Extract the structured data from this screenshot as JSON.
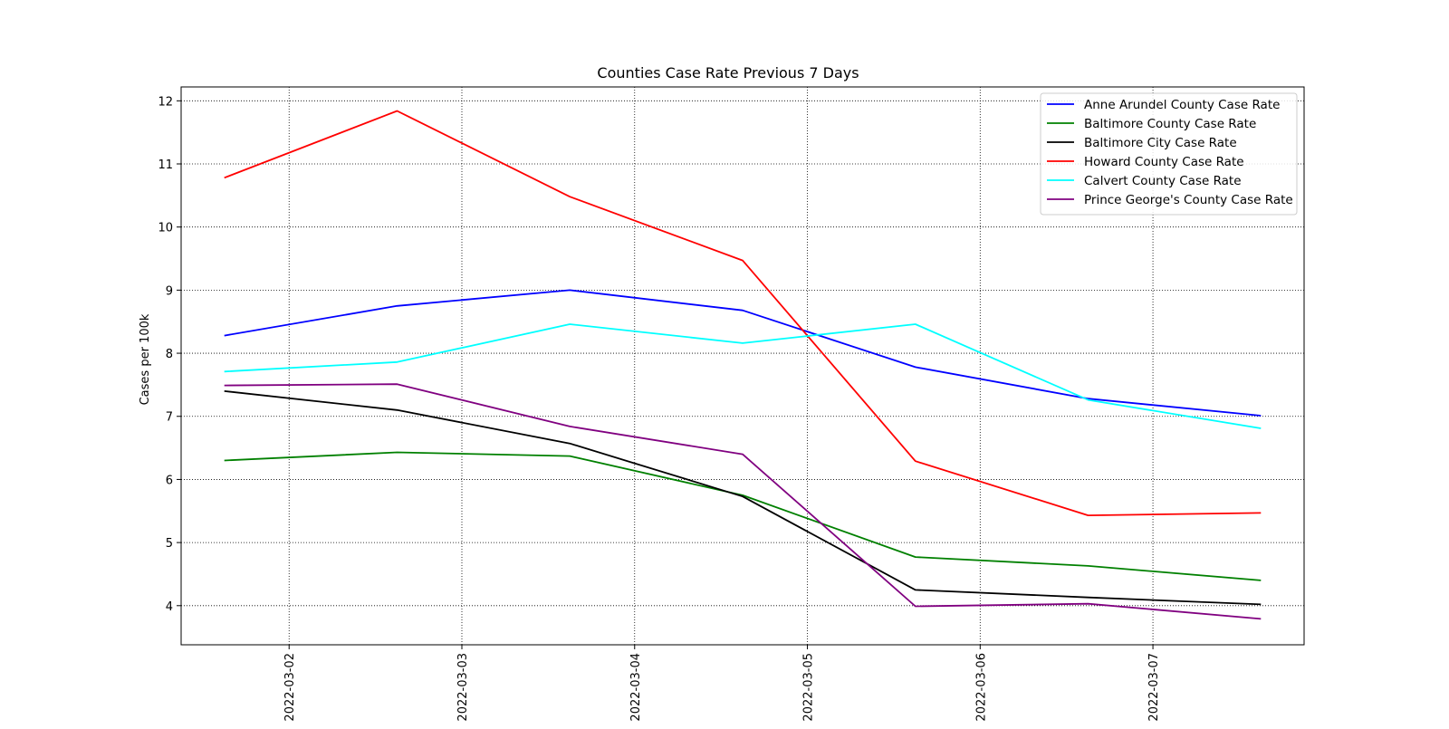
{
  "chart_data": {
    "type": "line",
    "title": "Counties Case Rate Previous 7 Days",
    "xlabel": "",
    "ylabel": "Cases per 100k",
    "x": [
      "2022-03-01 15:00",
      "2022-03-02 15:00",
      "2022-03-03 15:00",
      "2022-03-04 15:00",
      "2022-03-05 15:00",
      "2022-03-06 15:00",
      "2022-03-07 15:00"
    ],
    "x_ticks": [
      "2022-03-02",
      "2022-03-03",
      "2022-03-04",
      "2022-03-05",
      "2022-03-06",
      "2022-03-07"
    ],
    "xlim": [
      "2022-03-01 09:00",
      "2022-03-07 21:00"
    ],
    "y_ticks": [
      4,
      5,
      6,
      7,
      8,
      9,
      10,
      11,
      12
    ],
    "ylim": [
      3.38,
      12.22
    ],
    "grid": true,
    "grid_style": "dotted",
    "legend_position": "top-right",
    "series": [
      {
        "name": "Anne Arundel County Case Rate",
        "color": "#0000ff",
        "values": [
          8.28,
          8.75,
          9.0,
          8.68,
          7.78,
          7.28,
          7.01
        ]
      },
      {
        "name": "Baltimore County Case Rate",
        "color": "#008000",
        "values": [
          6.3,
          6.43,
          6.37,
          5.75,
          4.77,
          4.63,
          4.4
        ]
      },
      {
        "name": "Baltimore City Case Rate",
        "color": "#000000",
        "values": [
          7.4,
          7.1,
          6.57,
          5.73,
          4.25,
          4.13,
          4.02
        ]
      },
      {
        "name": "Howard County Case Rate",
        "color": "#ff0000",
        "values": [
          10.78,
          11.84,
          10.48,
          9.47,
          6.29,
          5.43,
          5.47
        ]
      },
      {
        "name": "Calvert County Case Rate",
        "color": "#00ffff",
        "values": [
          7.71,
          7.86,
          8.46,
          8.16,
          8.46,
          7.26,
          6.81
        ]
      },
      {
        "name": "Prince George's County Case Rate",
        "color": "#800080",
        "values": [
          7.49,
          7.51,
          6.84,
          6.4,
          3.99,
          4.03,
          3.79
        ]
      }
    ]
  }
}
